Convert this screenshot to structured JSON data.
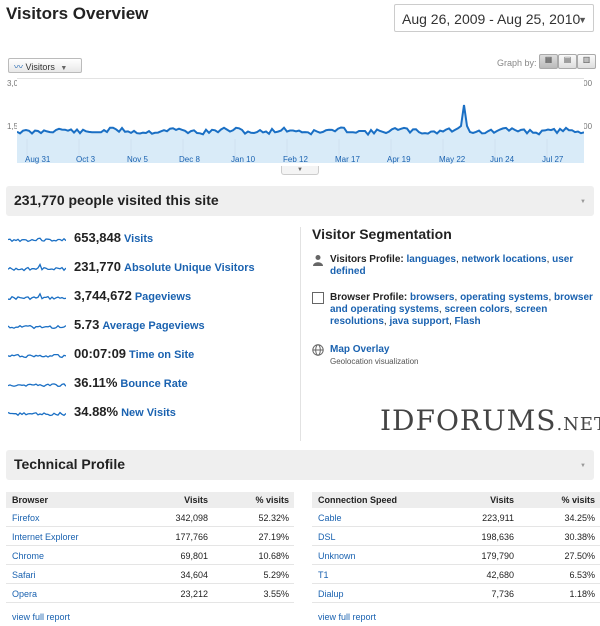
{
  "header": {
    "title": "Visitors Overview",
    "date_range": "Aug 26, 2009 - Aug 25, 2010"
  },
  "graph": {
    "metric_button": "Visitors",
    "graph_by_label": "Graph by:",
    "y_ticks": {
      "top": "3,000",
      "mid": "1,500"
    },
    "x_labels": [
      "Aug 31",
      "Oct 3",
      "Nov 5",
      "Dec 8",
      "Jan 10",
      "Feb 12",
      "Mar 17",
      "Apr 19",
      "May 22",
      "Jun 24",
      "Jul 27"
    ],
    "line_color": "#1a6fc4",
    "fill_color": "#d9ebf8"
  },
  "summary": {
    "headline": "231,770 people visited this site"
  },
  "metrics": [
    {
      "value": "653,848",
      "label": "Visits"
    },
    {
      "value": "231,770",
      "label": "Absolute Unique Visitors"
    },
    {
      "value": "3,744,672",
      "label": "Pageviews"
    },
    {
      "value": "5.73",
      "label": "Average Pageviews"
    },
    {
      "value": "00:07:09",
      "label": "Time on Site"
    },
    {
      "value": "36.11%",
      "label": "Bounce Rate"
    },
    {
      "value": "34.88%",
      "label": "New Visits"
    }
  ],
  "segmentation": {
    "title": "Visitor Segmentation",
    "visitors_profile": {
      "label": "Visitors Profile:",
      "links": [
        "languages",
        "network locations",
        "user defined"
      ]
    },
    "browser_profile": {
      "label": "Browser Profile:",
      "links": [
        "browsers",
        "operating systems",
        "browser and operating systems",
        "screen colors",
        "screen resolutions",
        "java support",
        "Flash"
      ]
    },
    "map_overlay": {
      "label": "Map Overlay",
      "sub": "Geolocation visualization"
    }
  },
  "watermark": {
    "main": "IDFORUMS",
    "suffix": ".NET"
  },
  "technical": {
    "title": "Technical Profile",
    "browser_table": {
      "headers": [
        "Browser",
        "Visits",
        "% visits"
      ],
      "rows": [
        [
          "Firefox",
          "342,098",
          "52.32%"
        ],
        [
          "Internet Explorer",
          "177,766",
          "27.19%"
        ],
        [
          "Chrome",
          "69,801",
          "10.68%"
        ],
        [
          "Safari",
          "34,604",
          "5.29%"
        ],
        [
          "Opera",
          "23,212",
          "3.55%"
        ]
      ],
      "link": "view full report"
    },
    "connection_table": {
      "headers": [
        "Connection Speed",
        "Visits",
        "% visits"
      ],
      "rows": [
        [
          "Cable",
          "223,911",
          "34.25%"
        ],
        [
          "DSL",
          "198,636",
          "30.38%"
        ],
        [
          "Unknown",
          "179,790",
          "27.50%"
        ],
        [
          "T1",
          "42,680",
          "6.53%"
        ],
        [
          "Dialup",
          "7,736",
          "1.18%"
        ]
      ],
      "link": "view full report"
    }
  }
}
